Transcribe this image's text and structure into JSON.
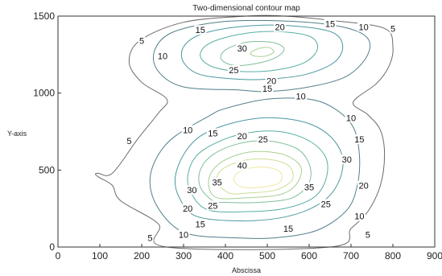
{
  "chart_data": {
    "type": "contour",
    "title": "Two-dimensional contour map",
    "xlabel": "Abscissa",
    "ylabel": "Y-axis",
    "xlim": [
      0,
      900
    ],
    "ylim": [
      0,
      1500
    ],
    "x_ticks": [
      "0",
      "100",
      "200",
      "300",
      "400",
      "500",
      "600",
      "700",
      "800",
      "900"
    ],
    "y_ticks": [
      "0",
      "500",
      "1000",
      "1500"
    ],
    "grid": false,
    "level_colors": {
      "5": "#6b6b6b",
      "10": "#4f7f8a",
      "15": "#4a98a0",
      "20": "#58aea2",
      "25": "#7fbe9a",
      "30": "#a7cf92",
      "35": "#cddd95",
      "40": "#eee6a4"
    },
    "contours": [
      {
        "level": 5,
        "points": [
          [
            260,
            0
          ],
          [
            240,
            150
          ],
          [
            150,
            300
          ],
          [
            130,
            400
          ],
          [
            100,
            450
          ],
          [
            90,
            470
          ],
          [
            95,
            480
          ],
          [
            130,
            480
          ],
          [
            190,
            700
          ],
          [
            240,
            870
          ],
          [
            260,
            960
          ],
          [
            200,
            1070
          ],
          [
            170,
            1200
          ],
          [
            195,
            1340
          ],
          [
            300,
            1460
          ],
          [
            450,
            1500
          ],
          [
            540,
            1500
          ],
          [
            660,
            1470
          ],
          [
            780,
            1420
          ],
          [
            800,
            1300
          ],
          [
            790,
            1170
          ],
          [
            760,
            1060
          ],
          [
            705,
            940
          ],
          [
            740,
            860
          ],
          [
            770,
            760
          ],
          [
            780,
            600
          ],
          [
            770,
            400
          ],
          [
            740,
            230
          ],
          [
            700,
            120
          ],
          [
            650,
            0
          ],
          [
            260,
            0
          ]
        ]
      },
      {
        "level": 10,
        "points": [
          [
            320,
            80
          ],
          [
            270,
            150
          ],
          [
            230,
            300
          ],
          [
            220,
            450
          ],
          [
            240,
            600
          ],
          [
            280,
            720
          ],
          [
            360,
            850
          ],
          [
            400,
            900
          ],
          [
            500,
            960
          ],
          [
            600,
            960
          ],
          [
            660,
            900
          ],
          [
            705,
            780
          ],
          [
            720,
            600
          ],
          [
            715,
            400
          ],
          [
            690,
            240
          ],
          [
            620,
            110
          ],
          [
            520,
            60
          ],
          [
            420,
            60
          ],
          [
            320,
            80
          ]
        ]
      },
      {
        "level": 10,
        "points": [
          [
            430,
            1020
          ],
          [
            300,
            1040
          ],
          [
            240,
            1140
          ],
          [
            230,
            1270
          ],
          [
            270,
            1390
          ],
          [
            380,
            1460
          ],
          [
            520,
            1470
          ],
          [
            660,
            1440
          ],
          [
            735,
            1370
          ],
          [
            740,
            1250
          ],
          [
            690,
            1110
          ],
          [
            600,
            1040
          ],
          [
            500,
            1010
          ],
          [
            430,
            1020
          ]
        ]
      },
      {
        "level": 15,
        "points": [
          [
            330,
            200
          ],
          [
            290,
            320
          ],
          [
            280,
            450
          ],
          [
            300,
            600
          ],
          [
            340,
            720
          ],
          [
            410,
            800
          ],
          [
            500,
            840
          ],
          [
            590,
            810
          ],
          [
            650,
            720
          ],
          [
            680,
            580
          ],
          [
            670,
            420
          ],
          [
            630,
            290
          ],
          [
            550,
            200
          ],
          [
            440,
            170
          ],
          [
            330,
            200
          ]
        ]
      },
      {
        "level": 15,
        "points": [
          [
            430,
            1090
          ],
          [
            340,
            1120
          ],
          [
            300,
            1200
          ],
          [
            300,
            1300
          ],
          [
            340,
            1380
          ],
          [
            430,
            1430
          ],
          [
            540,
            1440
          ],
          [
            650,
            1400
          ],
          [
            680,
            1310
          ],
          [
            660,
            1200
          ],
          [
            590,
            1120
          ],
          [
            500,
            1090
          ],
          [
            430,
            1090
          ]
        ]
      },
      {
        "level": 20,
        "points": [
          [
            360,
            240
          ],
          [
            320,
            340
          ],
          [
            310,
            460
          ],
          [
            330,
            590
          ],
          [
            380,
            680
          ],
          [
            450,
            740
          ],
          [
            530,
            750
          ],
          [
            600,
            690
          ],
          [
            640,
            580
          ],
          [
            640,
            440
          ],
          [
            610,
            320
          ],
          [
            540,
            250
          ],
          [
            450,
            230
          ],
          [
            360,
            240
          ]
        ]
      },
      {
        "level": 20,
        "points": [
          [
            440,
            1140
          ],
          [
            370,
            1170
          ],
          [
            340,
            1240
          ],
          [
            360,
            1320
          ],
          [
            430,
            1380
          ],
          [
            520,
            1400
          ],
          [
            600,
            1370
          ],
          [
            620,
            1290
          ],
          [
            590,
            1200
          ],
          [
            520,
            1150
          ],
          [
            440,
            1140
          ]
        ]
      },
      {
        "level": 25,
        "points": [
          [
            370,
            300
          ],
          [
            340,
            390
          ],
          [
            340,
            500
          ],
          [
            370,
            600
          ],
          [
            430,
            670
          ],
          [
            500,
            690
          ],
          [
            570,
            640
          ],
          [
            600,
            540
          ],
          [
            600,
            420
          ],
          [
            560,
            320
          ],
          [
            480,
            290
          ],
          [
            400,
            290
          ],
          [
            370,
            300
          ]
        ]
      },
      {
        "level": 25,
        "points": [
          [
            420,
            1180
          ],
          [
            390,
            1220
          ],
          [
            400,
            1280
          ],
          [
            450,
            1330
          ],
          [
            510,
            1330
          ],
          [
            540,
            1290
          ],
          [
            520,
            1230
          ],
          [
            470,
            1190
          ],
          [
            420,
            1180
          ]
        ]
      },
      {
        "level": 30,
        "points": [
          [
            380,
            320
          ],
          [
            360,
            400
          ],
          [
            370,
            500
          ],
          [
            410,
            580
          ],
          [
            470,
            620
          ],
          [
            540,
            600
          ],
          [
            580,
            520
          ],
          [
            570,
            410
          ],
          [
            530,
            340
          ],
          [
            450,
            320
          ],
          [
            380,
            320
          ]
        ]
      },
      {
        "level": 30,
        "points": [
          [
            470,
            1240
          ],
          [
            460,
            1260
          ],
          [
            480,
            1290
          ],
          [
            505,
            1295
          ],
          [
            515,
            1265
          ],
          [
            495,
            1240
          ],
          [
            470,
            1240
          ]
        ]
      },
      {
        "level": 35,
        "points": [
          [
            410,
            350
          ],
          [
            380,
            420
          ],
          [
            390,
            500
          ],
          [
            440,
            560
          ],
          [
            500,
            570
          ],
          [
            550,
            530
          ],
          [
            560,
            440
          ],
          [
            520,
            370
          ],
          [
            450,
            350
          ],
          [
            410,
            350
          ]
        ]
      },
      {
        "level": 40,
        "points": [
          [
            440,
            390
          ],
          [
            420,
            440
          ],
          [
            440,
            500
          ],
          [
            490,
            520
          ],
          [
            530,
            490
          ],
          [
            530,
            420
          ],
          [
            490,
            390
          ],
          [
            440,
            390
          ]
        ]
      }
    ],
    "labels": [
      {
        "text": "5",
        "x": 200,
        "y": 1340
      },
      {
        "text": "15",
        "x": 340,
        "y": 1410
      },
      {
        "text": "20",
        "x": 530,
        "y": 1430
      },
      {
        "text": "15",
        "x": 650,
        "y": 1450
      },
      {
        "text": "10",
        "x": 730,
        "y": 1430
      },
      {
        "text": "5",
        "x": 800,
        "y": 1420
      },
      {
        "text": "10",
        "x": 250,
        "y": 1240
      },
      {
        "text": "30",
        "x": 440,
        "y": 1290
      },
      {
        "text": "25",
        "x": 420,
        "y": 1150
      },
      {
        "text": "20",
        "x": 510,
        "y": 1080
      },
      {
        "text": "15",
        "x": 500,
        "y": 1030
      },
      {
        "text": "10",
        "x": 580,
        "y": 980
      },
      {
        "text": "5",
        "x": 170,
        "y": 690
      },
      {
        "text": "10",
        "x": 310,
        "y": 760
      },
      {
        "text": "15",
        "x": 370,
        "y": 740
      },
      {
        "text": "20",
        "x": 440,
        "y": 720
      },
      {
        "text": "25",
        "x": 490,
        "y": 700
      },
      {
        "text": "10",
        "x": 700,
        "y": 840
      },
      {
        "text": "15",
        "x": 720,
        "y": 700
      },
      {
        "text": "30",
        "x": 690,
        "y": 570
      },
      {
        "text": "40",
        "x": 440,
        "y": 530
      },
      {
        "text": "35",
        "x": 380,
        "y": 420
      },
      {
        "text": "30",
        "x": 320,
        "y": 370
      },
      {
        "text": "25",
        "x": 370,
        "y": 270
      },
      {
        "text": "20",
        "x": 310,
        "y": 250
      },
      {
        "text": "15",
        "x": 340,
        "y": 150
      },
      {
        "text": "10",
        "x": 300,
        "y": 80
      },
      {
        "text": "5",
        "x": 220,
        "y": 60
      },
      {
        "text": "35",
        "x": 600,
        "y": 390
      },
      {
        "text": "25",
        "x": 640,
        "y": 280
      },
      {
        "text": "20",
        "x": 730,
        "y": 400
      },
      {
        "text": "15",
        "x": 550,
        "y": 120
      },
      {
        "text": "10",
        "x": 720,
        "y": 200
      },
      {
        "text": "5",
        "x": 740,
        "y": 80
      }
    ]
  }
}
